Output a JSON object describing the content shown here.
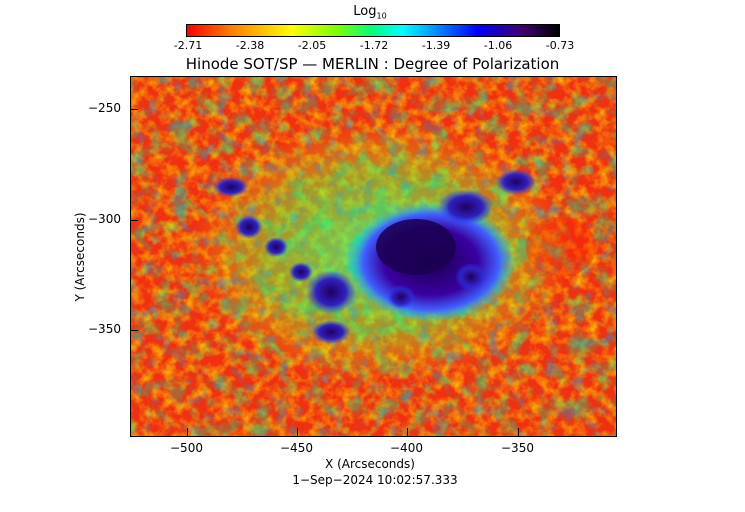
{
  "colorbar": {
    "label": "Log",
    "label_sub": "10",
    "ticks": [
      "-2.71",
      "-2.38",
      "-2.05",
      "-1.72",
      "-1.39",
      "-1.06",
      "-0.73"
    ]
  },
  "title": "Hinode SOT/SP — MERLIN : Degree of Polarization",
  "axes": {
    "xlabel": "X (Arcseconds)",
    "ylabel": "Y (Arcseconds)",
    "xticks": [
      "−500",
      "−450",
      "−400",
      "−350"
    ],
    "yticks": [
      "−250",
      "−300",
      "−350"
    ]
  },
  "timestamp": "1−Sep−2024 10:02:57.333",
  "colors": {
    "low": "#ff0000",
    "mid": "#00ff7f",
    "high": "#000000"
  }
}
